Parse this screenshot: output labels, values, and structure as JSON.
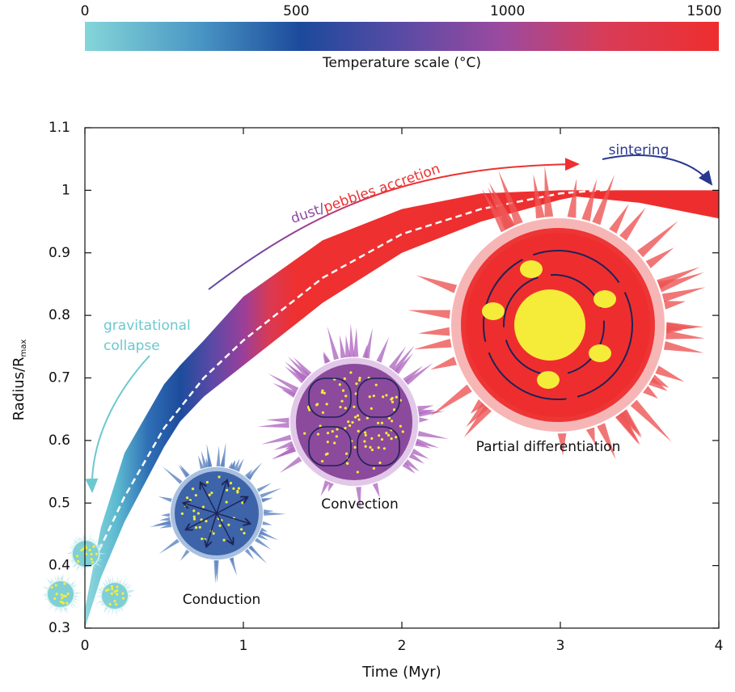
{
  "chart_data": {
    "type": "band",
    "xlabel": "Time (Myr)",
    "ylabel": "Radius/R",
    "ylabel_sub": "max",
    "xlim": [
      0,
      4
    ],
    "ylim": [
      0.3,
      1.1
    ],
    "xticks": [
      0,
      1,
      2,
      3,
      4
    ],
    "yticks": [
      0.3,
      0.4,
      0.5,
      0.6,
      0.7,
      0.8,
      0.9,
      1,
      1.1
    ],
    "colorbar": {
      "label": "Temperature scale (°C)",
      "lim": [
        0,
        1500
      ],
      "ticks": [
        0,
        500,
        1000,
        1500
      ]
    },
    "band": {
      "x": [
        0,
        0.1,
        0.25,
        0.5,
        0.6,
        0.75,
        1.0,
        1.5,
        2.0,
        2.5,
        3.0,
        3.1,
        3.5,
        4.0
      ],
      "upper": [
        0.33,
        0.46,
        0.58,
        0.69,
        0.72,
        0.76,
        0.83,
        0.92,
        0.97,
        0.995,
        1.0,
        1.0,
        1.0,
        1.0
      ],
      "lower": [
        0.3,
        0.38,
        0.47,
        0.59,
        0.63,
        0.67,
        0.72,
        0.82,
        0.9,
        0.95,
        0.985,
        0.99,
        0.98,
        0.955
      ]
    },
    "median": {
      "x": [
        0,
        0.1,
        0.25,
        0.5,
        0.75,
        1.0,
        1.5,
        2.0,
        2.5,
        3.0,
        3.5
      ],
      "values": [
        0.38,
        0.43,
        0.51,
        0.62,
        0.7,
        0.76,
        0.86,
        0.93,
        0.97,
        0.995,
        1.005
      ]
    },
    "annotations": {
      "collapse": [
        "gravitational",
        "collapse"
      ],
      "accretion": [
        "dust",
        "/",
        "pebbles accretion"
      ],
      "sintering": "sintering",
      "conduction": "Conduction",
      "convection": "Convection",
      "differentiation": "Partial differentiation"
    }
  }
}
